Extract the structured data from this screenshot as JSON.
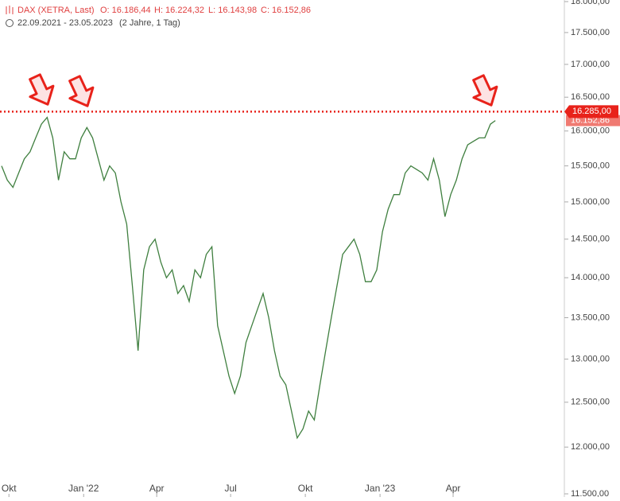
{
  "header": {
    "instrument": "DAX (XETRA, Last)",
    "open": "O: 16.186,44",
    "high": "H: 16.224,32",
    "low": "L: 16.143,98",
    "close": "C: 16.152,86",
    "range": "22.09.2021 - 23.05.2023",
    "span": "(2 Jahre, 1 Tag)"
  },
  "chart_data": {
    "type": "line",
    "log_scale": true,
    "color": "#3f7f3f",
    "x": [
      0,
      7,
      14,
      21,
      28,
      35,
      42,
      49,
      56,
      63,
      70,
      77,
      84,
      91,
      98,
      105,
      112,
      119,
      126,
      133,
      140,
      147,
      154,
      161,
      168,
      175,
      182,
      189,
      196,
      203,
      210,
      217,
      224,
      231,
      238,
      245,
      252,
      259,
      266,
      273,
      280,
      287,
      294,
      301,
      308,
      315,
      322,
      329,
      336,
      343,
      350,
      357,
      364,
      371,
      378,
      385,
      392,
      399,
      406,
      413,
      420,
      427,
      434,
      441,
      448,
      455,
      462,
      469,
      476,
      483,
      490,
      497,
      504,
      511,
      518,
      525,
      532,
      539,
      546,
      553,
      560,
      567,
      574,
      581,
      588,
      595,
      602,
      608
    ],
    "values": [
      15500,
      15300,
      15200,
      15400,
      15600,
      15700,
      15900,
      16100,
      16200,
      15900,
      15300,
      15700,
      15600,
      15600,
      15900,
      16050,
      15900,
      15600,
      15300,
      15500,
      15400,
      15000,
      14700,
      13900,
      13100,
      14100,
      14400,
      14500,
      14200,
      14000,
      14100,
      13800,
      13900,
      13700,
      14100,
      14000,
      14300,
      14400,
      13400,
      13100,
      12800,
      12600,
      12800,
      13200,
      13400,
      13600,
      13800,
      13500,
      13100,
      12800,
      12700,
      12400,
      12100,
      12200,
      12400,
      12300,
      12700,
      13100,
      13500,
      13900,
      14300,
      14400,
      14500,
      14300,
      13950,
      13950,
      14100,
      14600,
      14900,
      15100,
      15100,
      15400,
      15500,
      15450,
      15400,
      15300,
      15600,
      15300,
      14800,
      15100,
      15300,
      15600,
      15800,
      15850,
      15900,
      15900,
      16100,
      16153
    ],
    "xlim": [
      -2,
      693
    ],
    "xticks": [
      {
        "value": 9,
        "label": "Okt"
      },
      {
        "value": 101,
        "label": "Jan '22"
      },
      {
        "value": 191,
        "label": "Apr"
      },
      {
        "value": 282,
        "label": "Jul"
      },
      {
        "value": 374,
        "label": "Okt"
      },
      {
        "value": 466,
        "label": "Jan '23"
      },
      {
        "value": 556,
        "label": "Apr"
      }
    ],
    "ylim": [
      11500,
      18000
    ],
    "yticks": [
      {
        "value": 11500,
        "label": "11.500,00"
      },
      {
        "value": 12000,
        "label": "12.000,00"
      },
      {
        "value": 12500,
        "label": "12.500,00"
      },
      {
        "value": 13000,
        "label": "13.000,00"
      },
      {
        "value": 13500,
        "label": "13.500,00"
      },
      {
        "value": 14000,
        "label": "14.000,00"
      },
      {
        "value": 14500,
        "label": "14.500,00"
      },
      {
        "value": 15000,
        "label": "15.000,00"
      },
      {
        "value": 15500,
        "label": "15.500,00"
      },
      {
        "value": 16000,
        "label": "16.000,00"
      },
      {
        "value": 16500,
        "label": "16.500,00"
      },
      {
        "value": 17000,
        "label": "17.000,00"
      },
      {
        "value": 17500,
        "label": "17.500,00"
      },
      {
        "value": 18000,
        "label": "18.000,00"
      }
    ],
    "reference_line": {
      "value": 16285,
      "label": "16.285,00",
      "color": "#e8221a"
    },
    "last_price": {
      "value": 16152.86,
      "label": "16.152,86",
      "color": "#f07a72"
    }
  }
}
